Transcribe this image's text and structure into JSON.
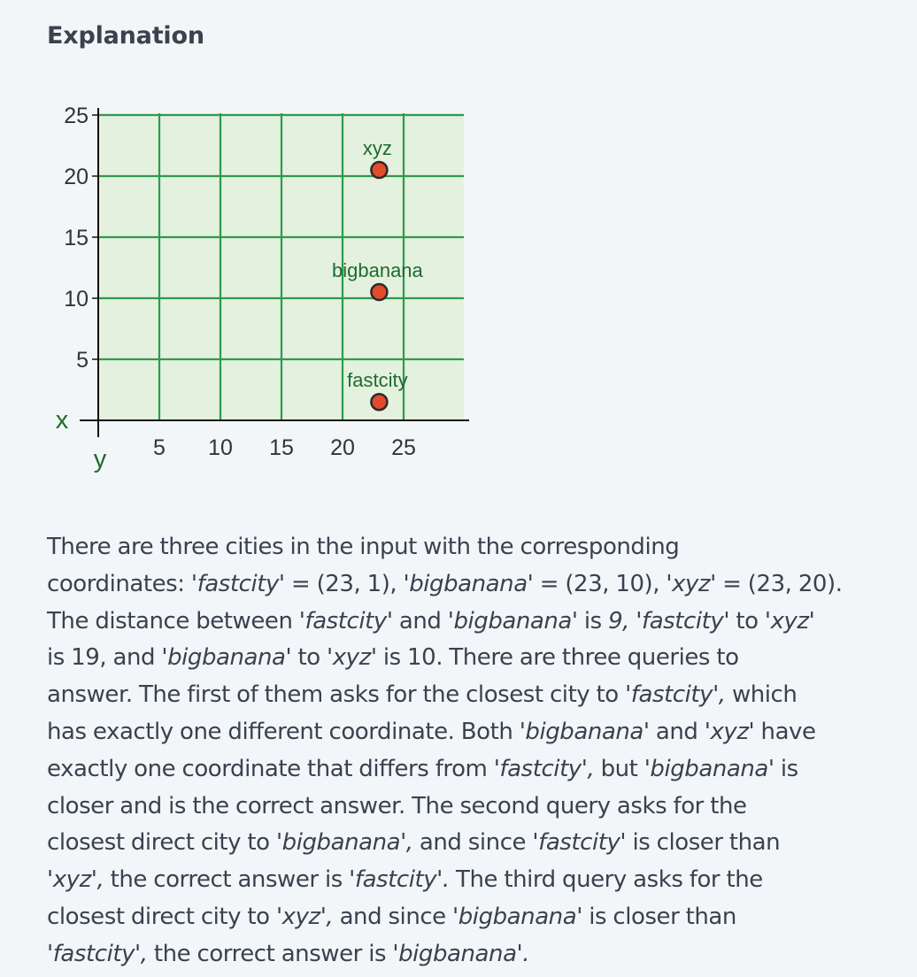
{
  "heading": "Explanation",
  "chart_data": {
    "type": "scatter",
    "title": "",
    "xlabel": "y",
    "ylabel": "x",
    "xlim": [
      0,
      30
    ],
    "ylim": [
      0,
      30
    ],
    "x_ticks": [
      5,
      10,
      15,
      20,
      25
    ],
    "y_ticks": [
      5,
      10,
      15,
      20,
      25
    ],
    "grid": true,
    "points": [
      {
        "label": "xyz",
        "x": 23,
        "y": 20
      },
      {
        "label": "bigbanana",
        "x": 23,
        "y": 10
      },
      {
        "label": "fastcity",
        "x": 23,
        "y": 1
      }
    ],
    "colors": {
      "background": "#e3f1de",
      "grid": "#2e9a4e",
      "axis": "#111111",
      "point_fill": "#e34b2b",
      "point_stroke": "#2a2a2a",
      "point_label": "#1f6b2e",
      "tick_label": "#333333",
      "axis_label": "#1f6b2e"
    }
  },
  "explanation": {
    "lines": [
      [
        {
          "t": "There are three cities in the input with the corresponding"
        }
      ],
      [
        {
          "t": "coordinates: "
        },
        {
          "t": "'fastcity'",
          "i": true
        },
        {
          "t": " = (23, 1), '"
        },
        {
          "t": "bigbanana'",
          "i": true
        },
        {
          "t": " = (23, 10), '"
        },
        {
          "t": "xyz'",
          "i": true
        },
        {
          "t": " = (23, 20)."
        }
      ],
      [
        {
          "t": "The distance between '"
        },
        {
          "t": "fastcity'",
          "i": true
        },
        {
          "t": " and '"
        },
        {
          "t": "bigbanana'",
          "i": true
        },
        {
          "t": " is "
        },
        {
          "t": "9, 'fastcity'",
          "i": true
        },
        {
          "t": " to '"
        },
        {
          "t": "xyz'",
          "i": true
        }
      ],
      [
        {
          "t": "is 19, and '"
        },
        {
          "t": "bigbanana'",
          "i": true
        },
        {
          "t": " to '"
        },
        {
          "t": "xyz'",
          "i": true
        },
        {
          "t": " is 10. There are three queries to"
        }
      ],
      [
        {
          "t": "answer. The first of them asks for the closest city to '"
        },
        {
          "t": "fastcity',",
          "i": true
        },
        {
          "t": " which"
        }
      ],
      [
        {
          "t": "has exactly one different coordinate. Both '"
        },
        {
          "t": "bigbanana'",
          "i": true
        },
        {
          "t": " and '"
        },
        {
          "t": "xyz'",
          "i": true
        },
        {
          "t": " have"
        }
      ],
      [
        {
          "t": "exactly one coordinate that differs from '"
        },
        {
          "t": "fastcity',",
          "i": true
        },
        {
          "t": " but '"
        },
        {
          "t": "bigbanana'",
          "i": true
        },
        {
          "t": " is"
        }
      ],
      [
        {
          "t": "closer and is the correct answer. The second query asks for the"
        }
      ],
      [
        {
          "t": "closest direct city to '"
        },
        {
          "t": "bigbanana',",
          "i": true
        },
        {
          "t": " and since '"
        },
        {
          "t": "fastcity'",
          "i": true
        },
        {
          "t": " is closer than"
        }
      ],
      [
        {
          "t": "'"
        },
        {
          "t": "xyz',",
          "i": true
        },
        {
          "t": " the correct answer is '"
        },
        {
          "t": "fastcity'.",
          "i": true
        },
        {
          "t": " The third query asks for the"
        }
      ],
      [
        {
          "t": "closest direct city to '"
        },
        {
          "t": "xyz',",
          "i": true
        },
        {
          "t": " and since '"
        },
        {
          "t": "bigbanana'",
          "i": true
        },
        {
          "t": " is closer than"
        }
      ],
      [
        {
          "t": "'"
        },
        {
          "t": "fastcity',",
          "i": true
        },
        {
          "t": " the correct answer is '"
        },
        {
          "t": "bigbanana'.",
          "i": true
        }
      ]
    ]
  }
}
